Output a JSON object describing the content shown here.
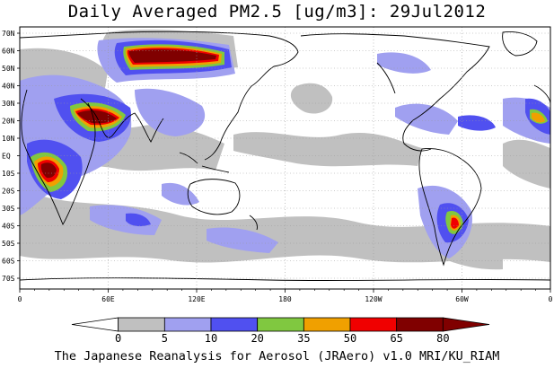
{
  "title": "Daily Averaged PM2.5 [ug/m3]: 29Jul2012",
  "footer": "The Japanese Reanalysis for Aerosol (JRAero) v1.0 MRI/KU_RIAM",
  "map": {
    "lat_labels": [
      "70N",
      "60N",
      "50N",
      "40N",
      "30N",
      "20N",
      "10N",
      "EQ",
      "10S",
      "20S",
      "30S",
      "40S",
      "50S",
      "60S",
      "70S"
    ],
    "lon_labels": [
      "0",
      "60E",
      "120E",
      "180",
      "120W",
      "60W",
      "0"
    ],
    "colors": {
      "land_outline": "#000000",
      "grid": "#9a9a9a",
      "level_5": "#c0c0c0",
      "level_10": "#a0a0f0",
      "level_20": "#5050f0",
      "level_35": "#80c840",
      "level_50": "#f0a000",
      "level_65": "#f00000",
      "level_80": "#800000"
    }
  },
  "colorbar": {
    "ticks": [
      "0",
      "5",
      "10",
      "20",
      "35",
      "50",
      "65",
      "80"
    ],
    "colors": [
      "#ffffff",
      "#c0c0c0",
      "#a0a0f0",
      "#5050f0",
      "#80c840",
      "#f0a000",
      "#f00000",
      "#800000",
      "#800000"
    ]
  }
}
